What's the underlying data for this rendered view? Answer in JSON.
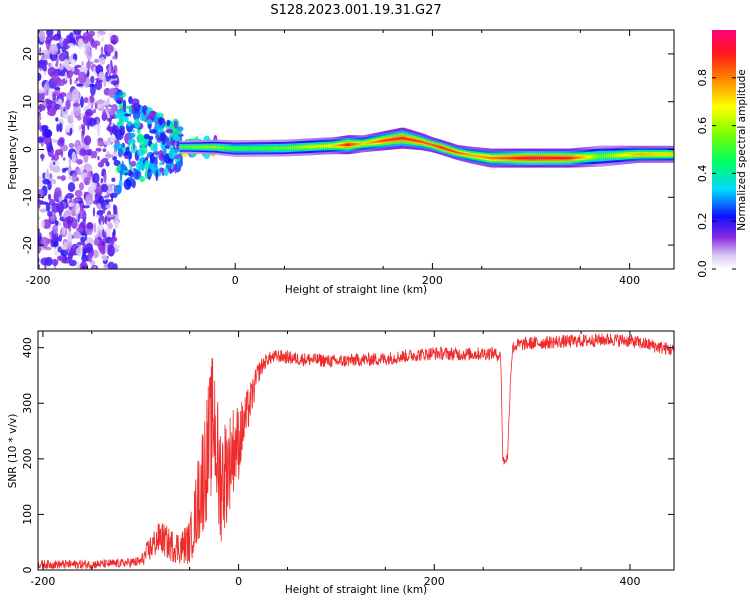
{
  "figure_title": "S128.2023.001.19.31.G27",
  "colors": {
    "snr_line": "#ef2b2b",
    "axis": "#000000",
    "spectrogram_background": "#ffffff"
  },
  "colorbar": {
    "label": "Normalized spectral amplitude",
    "range": [
      0,
      1
    ],
    "tick_labels": [
      "0.0",
      "0.2",
      "0.4",
      "0.6",
      "0.8"
    ],
    "tick_values": [
      0,
      0.2,
      0.4,
      0.6,
      0.8
    ],
    "colormap": "rainbow (white-violet-blue-cyan-green-yellow-orange-red-magenta)"
  },
  "chart_data": [
    {
      "type": "heatmap",
      "title": "S128.2023.001.19.31.G27",
      "xlabel": "Height of straight line (km)",
      "ylabel": "Frequency (Hz)",
      "xlim": [
        -200,
        445
      ],
      "ylim": [
        -25,
        25
      ],
      "x_tick_labels": [
        "-200",
        "0",
        "200",
        "400"
      ],
      "x_tick_values": [
        -200,
        0,
        200,
        400
      ],
      "y_tick_labels": [
        "-20",
        "-10",
        "0",
        "10",
        "20"
      ],
      "y_tick_values": [
        -20,
        -10,
        0,
        10,
        20
      ],
      "colorbar_label": "Normalized spectral amplitude",
      "regions": [
        {
          "description": "scattered noise",
          "x": [
            -205,
            -120
          ],
          "freq": [
            -25,
            25
          ],
          "amplitude": 0.15
        },
        {
          "description": "transition blobs",
          "x": [
            -120,
            -55
          ],
          "freq": [
            -12,
            9
          ],
          "amplitude": 0.3
        },
        {
          "description": "small signal segments",
          "x": [
            -55,
            -20
          ],
          "freq": [
            -1,
            2
          ],
          "amplitude": 0.6
        }
      ],
      "ridge": [
        {
          "x": -50,
          "freq": 0.5,
          "amplitude": 0.55,
          "width_hz": 1.2
        },
        {
          "x": -20,
          "freq": 0.5,
          "amplitude": 0.6,
          "width_hz": 1.4
        },
        {
          "x": 0,
          "freq": 0.2,
          "amplitude": 0.5,
          "width_hz": 1.6
        },
        {
          "x": 50,
          "freq": 0.3,
          "amplitude": 0.55,
          "width_hz": 1.6
        },
        {
          "x": 100,
          "freq": 0.8,
          "amplitude": 0.7,
          "width_hz": 1.6
        },
        {
          "x": 115,
          "freq": 1.0,
          "amplitude": 0.9,
          "width_hz": 1.8
        },
        {
          "x": 130,
          "freq": 1.2,
          "amplitude": 0.7,
          "width_hz": 1.6
        },
        {
          "x": 150,
          "freq": 1.8,
          "amplitude": 0.85,
          "width_hz": 1.8
        },
        {
          "x": 170,
          "freq": 2.4,
          "amplitude": 0.9,
          "width_hz": 2.0
        },
        {
          "x": 190,
          "freq": 1.6,
          "amplitude": 0.85,
          "width_hz": 1.6
        },
        {
          "x": 200,
          "freq": 1.0,
          "amplitude": 0.85,
          "width_hz": 1.4
        },
        {
          "x": 210,
          "freq": 0.4,
          "amplitude": 0.9,
          "width_hz": 1.4
        },
        {
          "x": 225,
          "freq": -0.6,
          "amplitude": 0.85,
          "width_hz": 1.4
        },
        {
          "x": 240,
          "freq": -1.2,
          "amplitude": 0.75,
          "width_hz": 1.6
        },
        {
          "x": 260,
          "freq": -1.8,
          "amplitude": 0.8,
          "width_hz": 1.8
        },
        {
          "x": 300,
          "freq": -1.8,
          "amplitude": 0.95,
          "width_hz": 1.8
        },
        {
          "x": 340,
          "freq": -1.8,
          "amplitude": 0.9,
          "width_hz": 1.8
        },
        {
          "x": 370,
          "freq": -1.4,
          "amplitude": 0.55,
          "width_hz": 2.0
        },
        {
          "x": 410,
          "freq": -1.0,
          "amplitude": 0.75,
          "width_hz": 1.6
        },
        {
          "x": 445,
          "freq": -1.0,
          "amplitude": 0.7,
          "width_hz": 1.6
        }
      ]
    },
    {
      "type": "line",
      "xlabel": "Height of straight line (km)",
      "ylabel": "SNR (10 * v/v)",
      "xlim": [
        -205,
        445
      ],
      "ylim": [
        0,
        430
      ],
      "x_tick_labels": [
        "-200",
        "0",
        "200",
        "400"
      ],
      "x_tick_values": [
        -200,
        0,
        200,
        400
      ],
      "y_tick_labels": [
        "0",
        "100",
        "200",
        "300",
        "400"
      ],
      "y_tick_values": [
        0,
        100,
        200,
        300,
        400
      ],
      "series": [
        {
          "x": [
            -205,
            -180,
            -150,
            -120,
            -100,
            -90,
            -80,
            -70,
            -60,
            -50,
            -45,
            -40,
            -35,
            -30,
            -25,
            -20,
            -15,
            -10,
            -5,
            0,
            5,
            10,
            15,
            20,
            25,
            30,
            40,
            60,
            80,
            100,
            120,
            150,
            170,
            200,
            230,
            260,
            268,
            270,
            272,
            275,
            278,
            280,
            285,
            300,
            320,
            350,
            380,
            400,
            420,
            445
          ],
          "y": [
            10,
            10,
            10,
            12,
            15,
            40,
            60,
            45,
            40,
            50,
            90,
            140,
            180,
            230,
            280,
            160,
            170,
            190,
            220,
            230,
            260,
            290,
            320,
            355,
            370,
            380,
            385,
            380,
            378,
            375,
            378,
            380,
            385,
            390,
            388,
            390,
            385,
            200,
            195,
            205,
            350,
            400,
            405,
            408,
            410,
            412,
            415,
            412,
            405,
            395
          ],
          "noise_amplitude": [
            8,
            8,
            8,
            8,
            10,
            25,
            30,
            30,
            30,
            40,
            60,
            90,
            110,
            120,
            130,
            120,
            110,
            90,
            80,
            70,
            50,
            40,
            30,
            20,
            15,
            12,
            12,
            12,
            12,
            12,
            12,
            12,
            12,
            12,
            12,
            12,
            10,
            8,
            8,
            8,
            10,
            12,
            12,
            12,
            12,
            12,
            12,
            12,
            12,
            12
          ]
        }
      ]
    }
  ]
}
